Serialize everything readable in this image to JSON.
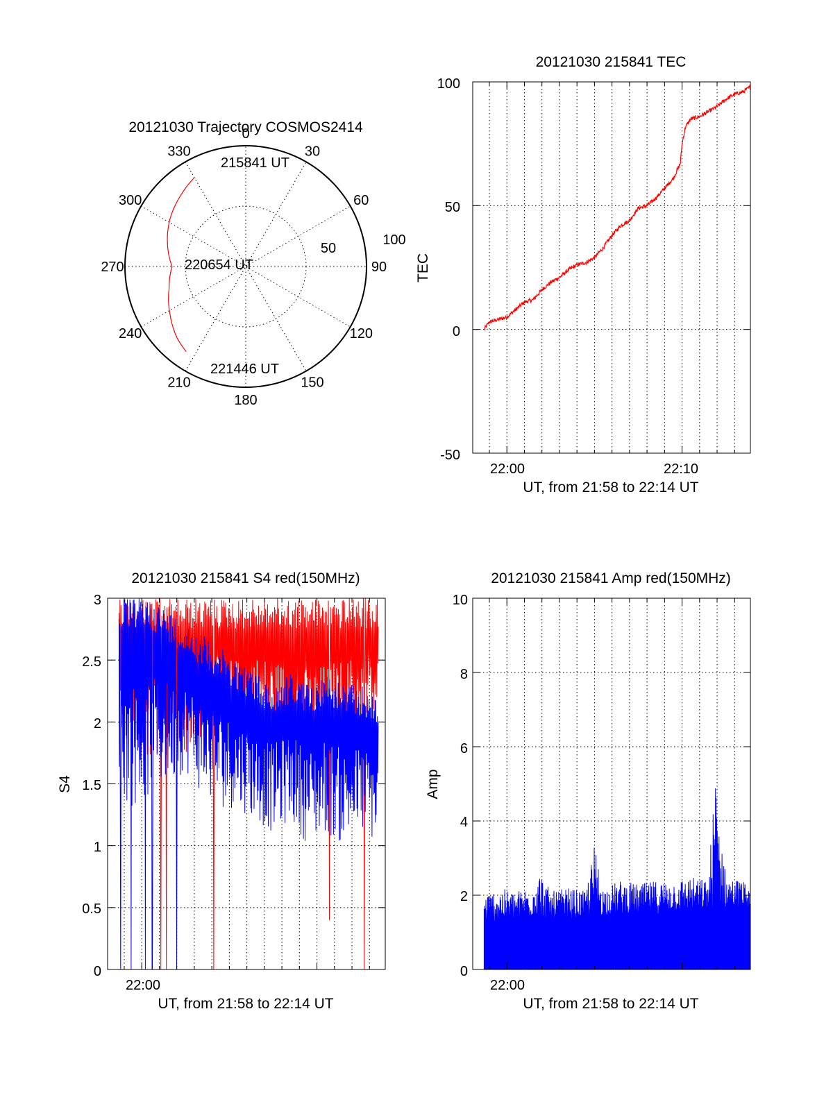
{
  "colors": {
    "red": "#ff0000",
    "blue": "#0000ff",
    "axis": "#000000",
    "background": "#ffffff"
  },
  "polar": {
    "title": "20121030 Trajectory COSMOS2414",
    "angle_labels": [
      "0",
      "30",
      "60",
      "90",
      "120",
      "150",
      "180",
      "210",
      "240",
      "270",
      "300",
      "330"
    ],
    "radius_labels": [
      "50",
      "100"
    ],
    "annotations": {
      "start": "215841 UT",
      "mid": "220654 UT",
      "end": "221446 UT"
    }
  },
  "tec": {
    "title": "20121030 215841 TEC",
    "ylabel": "TEC",
    "xlabel": "UT, from 21:58 to 22:14 UT",
    "xticks": [
      "22:00",
      "22:10"
    ],
    "yticks": [
      "100",
      "50",
      "0",
      "-50"
    ]
  },
  "s4": {
    "title": "20121030 215841 S4 red(150MHz)",
    "ylabel": "S4",
    "xlabel": "UT, from 21:58 to 22:14 UT",
    "xticks": [
      "22:00"
    ],
    "yticks": [
      "3",
      "2.5",
      "2",
      "1.5",
      "1",
      "0.5",
      "0"
    ]
  },
  "amp": {
    "title": "20121030 215841 Amp red(150MHz)",
    "ylabel": "Amp",
    "xlabel": "UT, from 21:58 to 22:14 UT",
    "xticks": [
      "22:00"
    ],
    "yticks": [
      "10",
      "8",
      "6",
      "4",
      "2",
      "0"
    ]
  },
  "chart_data": [
    {
      "type": "scatter",
      "title": "20121030 Trajectory COSMOS2414",
      "coordinates": "polar (azimuth deg clockwise from north, zenith angle deg)",
      "rlim": [
        0,
        100
      ],
      "grid": true,
      "series": [
        {
          "color": "#ff0000",
          "azimuth": [
            330,
            318,
            302,
            285,
            270,
            254,
            238,
            224,
            215
          ],
          "zenith": [
            85,
            80,
            74,
            67,
            61,
            66,
            74,
            82,
            86
          ]
        }
      ],
      "annotations": [
        "215841 UT",
        "220654 UT",
        "221446 UT"
      ]
    },
    {
      "type": "line",
      "title": "20121030 215841 TEC",
      "xlabel": "UT, from 21:58 to 22:14 UT",
      "ylabel": "TEC",
      "xlim": [
        -1.95,
        13.9
      ],
      "ylim": [
        -50,
        100
      ],
      "xtick_values": [
        0,
        10
      ],
      "xtick_labels": [
        "22:00",
        "22:10"
      ],
      "grid": true,
      "series": [
        {
          "color": "#ff0000",
          "x": [
            -1.3,
            -1.0,
            -0.5,
            0.0,
            0.5,
            1.0,
            1.5,
            2.0,
            2.5,
            3.0,
            3.5,
            4.0,
            4.5,
            5.0,
            5.5,
            6.0,
            6.5,
            7.0,
            7.5,
            8.0,
            8.5,
            9.0,
            9.5,
            9.9,
            10.0,
            10.2,
            10.5,
            11.0,
            11.5,
            12.0,
            12.5,
            13.0,
            13.5,
            13.9
          ],
          "y": [
            0,
            3,
            4,
            5,
            8,
            11,
            12,
            16,
            19,
            21,
            24,
            26,
            27,
            29,
            33,
            38,
            42,
            44,
            49,
            50,
            53,
            57,
            61,
            67,
            75,
            82,
            85,
            86,
            88,
            90,
            93,
            95,
            96,
            98
          ]
        }
      ]
    },
    {
      "type": "line",
      "title": "20121030 215841 S4 red(150MHz)",
      "xlabel": "UT, from 21:58 to 22:14 UT",
      "ylabel": "S4",
      "xlim": [
        -1.95,
        13.9
      ],
      "ylim": [
        0,
        3
      ],
      "xtick_values": [
        0
      ],
      "xtick_labels": [
        "22:00"
      ],
      "grid": true,
      "series": [
        {
          "color": "#ff0000",
          "x": [
            -1.3,
            -0.5,
            0.5,
            1.5,
            2.5,
            3.5,
            4.5,
            5.5,
            6.5,
            7.5,
            8.5,
            9.5,
            10.5,
            11.5,
            12.5,
            13.5
          ],
          "envelope_min": [
            1.9,
            1.8,
            1.7,
            1.8,
            1.6,
            1.9,
            1.8,
            1.8,
            1.9,
            1.8,
            1.7,
            1.6,
            1.7,
            1.8,
            1.9,
            1.9
          ],
          "envelope_max": [
            3,
            3,
            3,
            3,
            3,
            3,
            3,
            3,
            3,
            3,
            3,
            3,
            3,
            3,
            3,
            3
          ],
          "drop_to_zero_x": [
            1.1,
            1.4,
            4.1,
            12.7,
            13.7
          ],
          "dip": {
            "x": 10.7,
            "y": 0.4
          }
        },
        {
          "color": "#0000ff",
          "x": [
            -1.3,
            -0.5,
            0.5,
            1.5,
            2.5,
            3.5,
            4.5,
            5.5,
            6.5,
            7.5,
            8.5,
            9.5,
            10.5,
            11.5,
            12.5,
            13.5
          ],
          "envelope_min": [
            1.4,
            1.3,
            1.4,
            1.5,
            1.6,
            1.4,
            1.3,
            1.3,
            1.2,
            1.1,
            1.2,
            1.0,
            1.1,
            1.0,
            1.1,
            1.0
          ],
          "envelope_max": [
            3,
            3,
            3,
            2.9,
            2.8,
            2.7,
            2.6,
            2.5,
            2.4,
            2.3,
            2.4,
            2.3,
            2.4,
            2.3,
            2.3,
            2.2
          ],
          "drop_to_zero_x": [
            -1.2,
            -0.6,
            0.2,
            0.6,
            2.0
          ]
        }
      ]
    },
    {
      "type": "area",
      "title": "20121030 215841 Amp red(150MHz)",
      "xlabel": "UT, from 21:58 to 22:14 UT",
      "ylabel": "Amp",
      "xlim": [
        -1.95,
        13.9
      ],
      "ylim": [
        0,
        10
      ],
      "xtick_values": [
        0
      ],
      "xtick_labels": [
        "22:00"
      ],
      "grid": true,
      "series": [
        {
          "color": "#0000ff",
          "x": [
            -1.3,
            -0.5,
            0.5,
            1.5,
            1.7,
            2.5,
            3.5,
            4.5,
            5.0,
            5.5,
            6.5,
            7.5,
            8.5,
            9.5,
            10.5,
            11.5,
            11.9,
            12.5,
            13.5,
            13.9
          ],
          "base": [
            1.3,
            1.3,
            1.35,
            1.4,
            1.4,
            1.35,
            1.35,
            1.4,
            1.45,
            1.45,
            1.5,
            1.5,
            1.5,
            1.55,
            1.6,
            1.6,
            1.65,
            1.65,
            1.7,
            1.7
          ],
          "peak": [
            2.0,
            2.2,
            2.1,
            2.3,
            2.8,
            2.1,
            2.2,
            2.1,
            3.4,
            2.2,
            2.4,
            2.3,
            2.4,
            2.4,
            2.5,
            2.4,
            5.4,
            2.5,
            2.4,
            2.1
          ]
        }
      ]
    }
  ]
}
